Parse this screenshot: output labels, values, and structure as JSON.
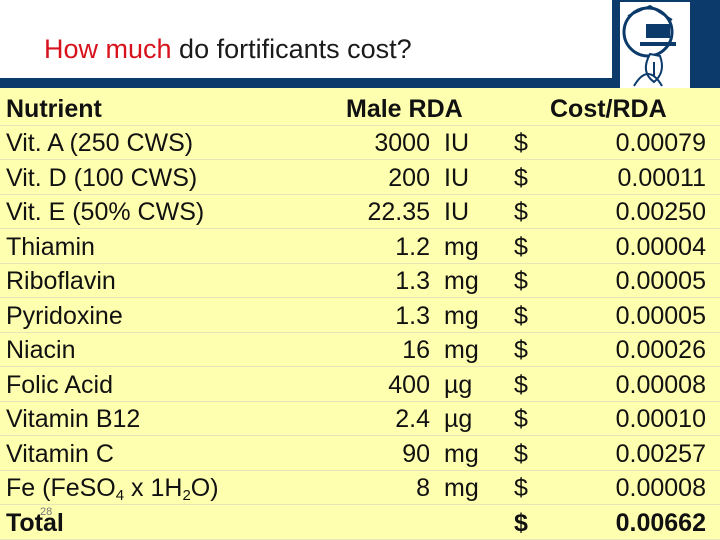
{
  "slide": {
    "title_accent": "How much",
    "title_rest": " do fortificants cost?",
    "slide_number": "28"
  },
  "table": {
    "headers": {
      "nutrient": "Nutrient",
      "rda": "Male RDA",
      "cost": "Cost/RDA"
    },
    "currency": "$",
    "rows": [
      {
        "name": "Vit. A (250 CWS)",
        "value": "3000",
        "unit": "IU",
        "cost": "0.00079"
      },
      {
        "name": "Vit. D (100 CWS)",
        "value": "200",
        "unit": "IU",
        "cost": "0.00011"
      },
      {
        "name": "Vit. E (50% CWS)",
        "value": "22.35",
        "unit": "IU",
        "cost": "0.00250"
      },
      {
        "name": "Thiamin",
        "value": "1.2",
        "unit": "mg",
        "cost": "0.00004"
      },
      {
        "name": "Riboflavin",
        "value": "1.3",
        "unit": "mg",
        "cost": "0.00005"
      },
      {
        "name": "Pyridoxine",
        "value": "1.3",
        "unit": "mg",
        "cost": "0.00005"
      },
      {
        "name": "Niacin",
        "value": "16",
        "unit": "mg",
        "cost": "0.00026"
      },
      {
        "name": "Folic Acid",
        "value": "400",
        "unit": "µg",
        "cost": "0.00008"
      },
      {
        "name": "Vitamin B12",
        "value": "2.4",
        "unit": "µg",
        "cost": "0.00010"
      },
      {
        "name": "Vitamin C",
        "value": "90",
        "unit": "mg",
        "cost": "0.00257"
      },
      {
        "name_parts": [
          "Fe (FeSO",
          "4",
          " x 1H",
          "2",
          "O)"
        ],
        "value": "8",
        "unit": "mg",
        "cost": "0.00008"
      }
    ],
    "total": {
      "label": "Total",
      "cost": "0.00662"
    }
  }
}
